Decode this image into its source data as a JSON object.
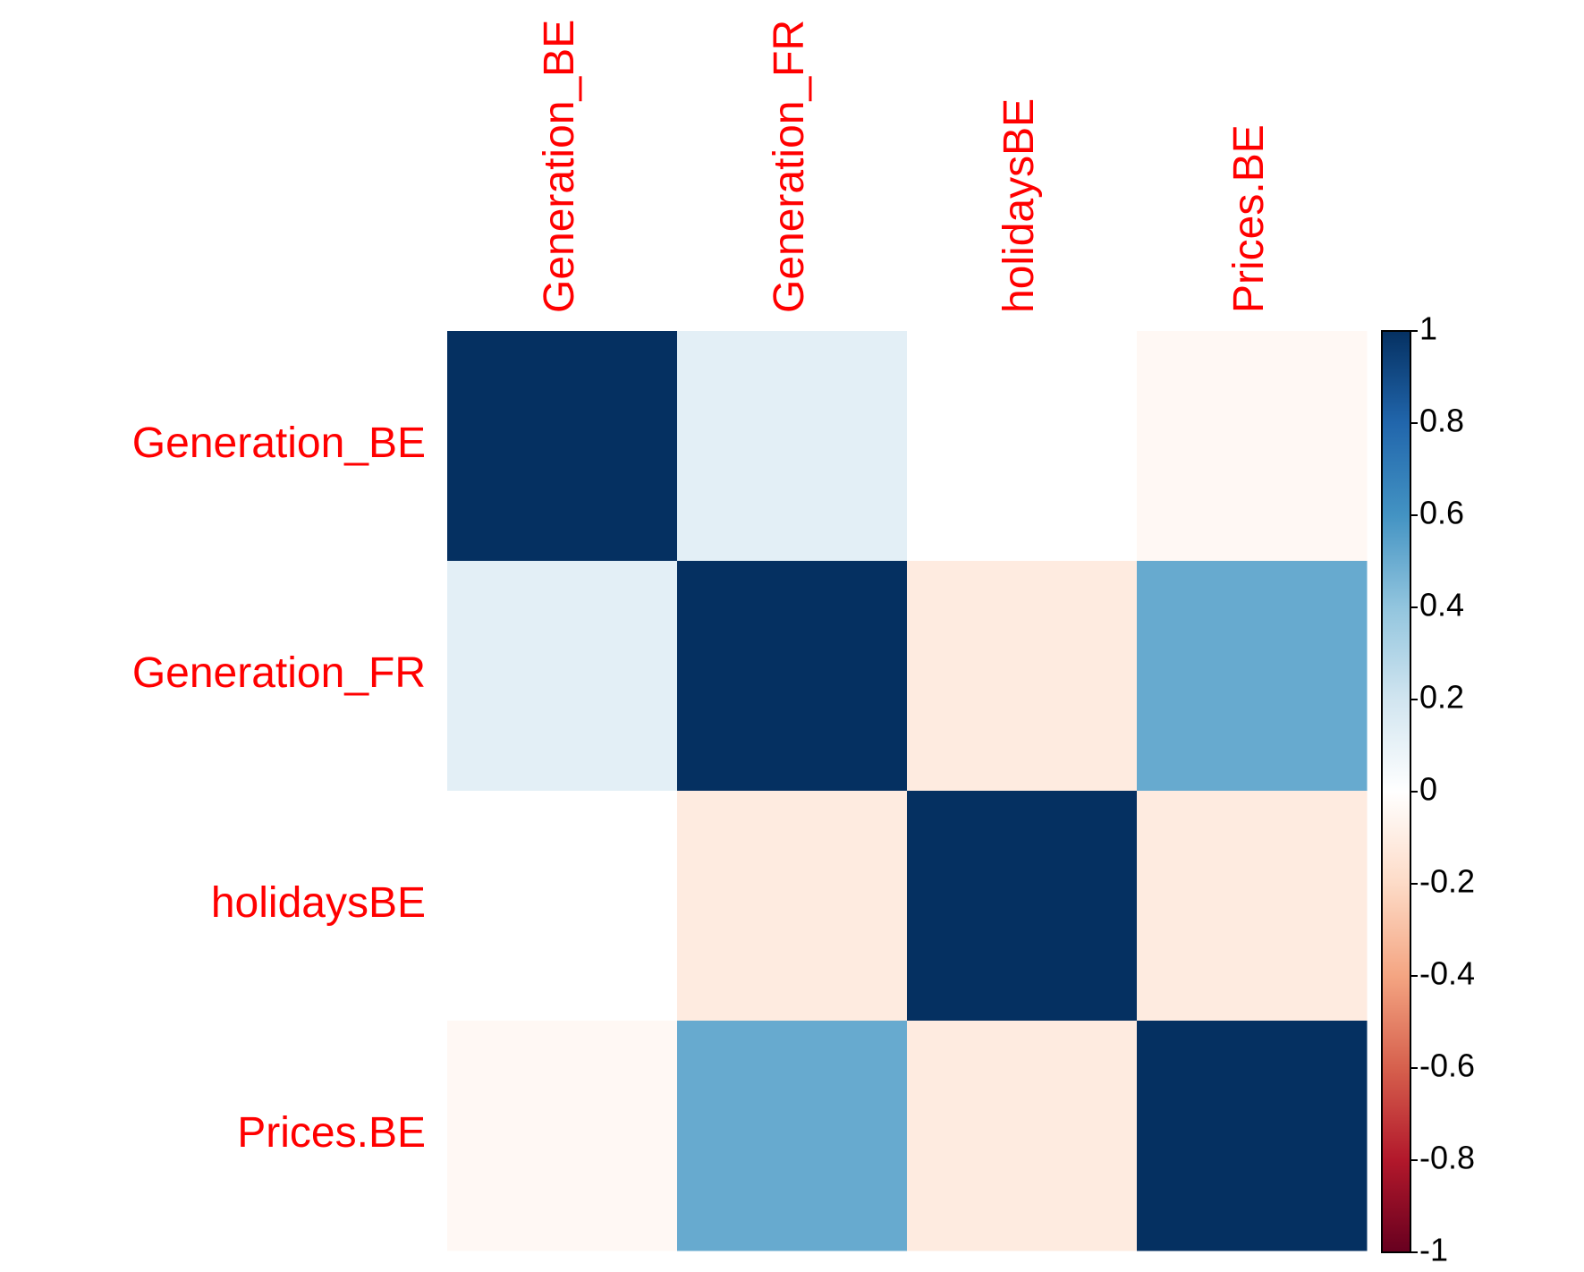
{
  "chart_data": {
    "type": "heatmap",
    "variables": [
      "Generation_BE",
      "Generation_FR",
      "holidaysBE",
      "Prices.BE"
    ],
    "matrix": [
      [
        1.0,
        0.12,
        0.0,
        -0.04
      ],
      [
        0.12,
        1.0,
        -0.11,
        0.51
      ],
      [
        0.0,
        -0.11,
        1.0,
        -0.11
      ],
      [
        -0.04,
        0.51,
        -0.11,
        1.0
      ]
    ],
    "colorbar": {
      "range": [
        -1,
        1
      ],
      "ticks": [
        "1",
        "0.8",
        "0.6",
        "0.4",
        "0.2",
        "0",
        "-0.2",
        "-0.4",
        "-0.6",
        "-0.8",
        "-1"
      ],
      "palette": [
        "#67001F",
        "#B2182B",
        "#D6604D",
        "#F4A582",
        "#FDDBC7",
        "#FFFFFF",
        "#D1E5F0",
        "#92C5DE",
        "#4393C3",
        "#2166AC",
        "#053061"
      ]
    },
    "label_color": "#FF0000",
    "grid": false,
    "legend_position": "right"
  }
}
